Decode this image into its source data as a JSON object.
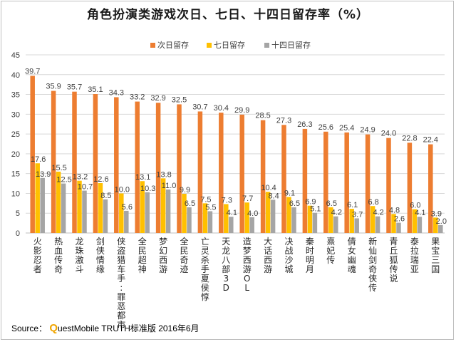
{
  "chart_data": {
    "type": "bar",
    "title": "角色扮演类游戏次日、七日、十四日留存率（%）",
    "xlabel": "",
    "ylabel": "",
    "ylim": [
      0,
      45
    ],
    "yticks": [
      0,
      5,
      10,
      15,
      20,
      25,
      30,
      35,
      40,
      45
    ],
    "grid": true,
    "legend_position": "top-right",
    "categories": [
      "火影忍者",
      "热血传奇",
      "龙珠激斗",
      "剑侠情缘",
      "侠盗猎车手:罪恶都市",
      "全民超神",
      "梦幻西游",
      "全民奇迹",
      "亡灵杀手夏侯惇",
      "天龙八部3D",
      "造梦西游OL",
      "大话西游",
      "决战沙城",
      "秦时明月",
      "熹妃传",
      "倩女幽魂",
      "新仙剑奇侠传",
      "青丘狐传说",
      "泰拉瑞亚",
      "果宝三国"
    ],
    "series": [
      {
        "name": "次日留存",
        "color": "#ED7D31",
        "values": [
          39.7,
          35.9,
          35.7,
          35.1,
          34.3,
          33.2,
          32.9,
          32.5,
          30.7,
          30.4,
          29.9,
          28.5,
          27.3,
          26.3,
          25.6,
          25.4,
          24.9,
          24.0,
          22.8,
          22.4
        ]
      },
      {
        "name": "七日留存",
        "color": "#FFC000",
        "values": [
          17.6,
          15.5,
          13.2,
          12.6,
          10.0,
          13.1,
          13.8,
          9.9,
          7.5,
          7.3,
          7.7,
          10.4,
          9.1,
          6.9,
          6.5,
          6.1,
          6.8,
          4.8,
          6.0,
          3.9
        ]
      },
      {
        "name": "十四日留存",
        "color": "#A5A5A5",
        "values": [
          13.9,
          12.5,
          10.7,
          8.5,
          5.6,
          10.3,
          11.0,
          6.5,
          5.5,
          4.1,
          4.0,
          8.4,
          6.5,
          5.1,
          4.2,
          3.7,
          4.2,
          2.6,
          4.1,
          2.0
        ]
      }
    ]
  },
  "source": {
    "label": "Source：",
    "q_logo": "Q",
    "text": "uestMobile TRUTH标准版 2016年6月"
  }
}
